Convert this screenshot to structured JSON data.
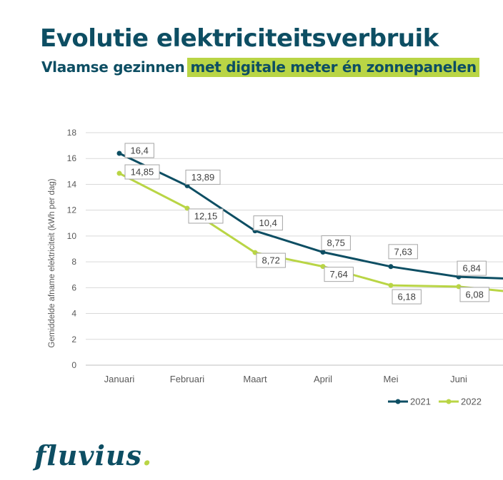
{
  "header": {
    "title": "Evolutie elektriciteitsverbruik",
    "subtitle_plain": "Vlaamse gezinnen",
    "subtitle_highlight": "met digitale meter én zonnepanelen"
  },
  "colors": {
    "primary": "#0d4e63",
    "accent": "#b9d545",
    "series_2021": "#0d4e63",
    "series_2022": "#b9d545",
    "grid": "#d9d9d9",
    "axis_text": "#595959"
  },
  "chart_data": {
    "type": "line",
    "title": "",
    "ylabel": "Gemiddelde afname elektriciteit (kWh per dag)",
    "xlabel": "",
    "ylim": [
      0,
      18
    ],
    "yticks": [
      0,
      2,
      4,
      6,
      8,
      10,
      12,
      14,
      16,
      18
    ],
    "grid": true,
    "legend": "bottom-right",
    "categories": [
      "Januari",
      "Februari",
      "Maart",
      "April",
      "Mei",
      "Juni"
    ],
    "series": [
      {
        "name": "2021",
        "values": [
          16.4,
          13.89,
          10.4,
          8.75,
          7.63,
          6.84
        ],
        "labels": [
          "16,4",
          "13,89",
          "10,4",
          "8,75",
          "7,63",
          "6,84"
        ],
        "continues_to": 6.7
      },
      {
        "name": "2022",
        "values": [
          14.85,
          12.15,
          8.72,
          7.64,
          6.18,
          6.08
        ],
        "labels": [
          "14,85",
          "12,15",
          "8,72",
          "7,64",
          "6,18",
          "6,08"
        ],
        "continues_to": 5.7
      }
    ]
  },
  "logo": {
    "text": "fluvius",
    "dot": "."
  }
}
